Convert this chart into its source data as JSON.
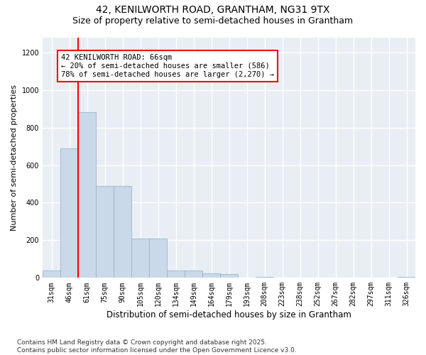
{
  "title1": "42, KENILWORTH ROAD, GRANTHAM, NG31 9TX",
  "title2": "Size of property relative to semi-detached houses in Grantham",
  "xlabel": "Distribution of semi-detached houses by size in Grantham",
  "ylabel": "Number of semi-detached properties",
  "footnote": "Contains HM Land Registry data © Crown copyright and database right 2025.\nContains public sector information licensed under the Open Government Licence v3.0.",
  "bar_labels": [
    "31sqm",
    "46sqm",
    "61sqm",
    "75sqm",
    "90sqm",
    "105sqm",
    "120sqm",
    "134sqm",
    "149sqm",
    "164sqm",
    "179sqm",
    "193sqm",
    "208sqm",
    "223sqm",
    "238sqm",
    "252sqm",
    "267sqm",
    "282sqm",
    "297sqm",
    "311sqm",
    "326sqm"
  ],
  "bar_values": [
    40,
    690,
    880,
    490,
    490,
    210,
    210,
    40,
    40,
    25,
    20,
    0,
    5,
    0,
    0,
    0,
    0,
    0,
    0,
    0,
    5
  ],
  "bar_color": "#c9d9ea",
  "bar_edge_color": "#9ab4cc",
  "ylim": [
    0,
    1280
  ],
  "yticks": [
    0,
    200,
    400,
    600,
    800,
    1000,
    1200
  ],
  "annotation_box_text": "42 KENILWORTH ROAD: 66sqm\n← 20% of semi-detached houses are smaller (586)\n78% of semi-detached houses are larger (2,270) →",
  "vline_x": 1.5,
  "vline_color": "red",
  "box_edgecolor": "red",
  "background_color": "#ffffff",
  "axes_bg_color": "#e8eef4",
  "grid_color": "#ffffff",
  "title1_fontsize": 10,
  "title2_fontsize": 9,
  "xlabel_fontsize": 8.5,
  "ylabel_fontsize": 8,
  "tick_fontsize": 7,
  "annotation_fontsize": 7.5,
  "footnote_fontsize": 6.5
}
